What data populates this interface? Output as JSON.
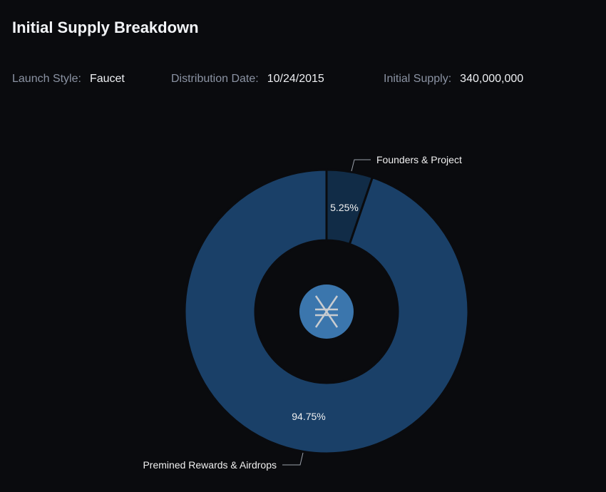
{
  "header": {
    "title": "Initial Supply Breakdown"
  },
  "meta": [
    {
      "label": "Launch Style:",
      "value": "Faucet"
    },
    {
      "label": "Distribution Date:",
      "value": "10/24/2015"
    },
    {
      "label": "Initial Supply:",
      "value": "340,000,000"
    }
  ],
  "chart_data": {
    "type": "pie",
    "variant": "donut",
    "title": "Initial Supply Breakdown",
    "slices": [
      {
        "name": "Founders & Project",
        "value": 5.25,
        "label": "5.25%",
        "color": "#112c47"
      },
      {
        "name": "Premined Rewards & Airdrops",
        "value": 94.75,
        "label": "94.75%",
        "color": "#1a4068"
      }
    ],
    "center_icon": "nxt-coin-logo",
    "center_icon_color": "#3b76ad"
  }
}
